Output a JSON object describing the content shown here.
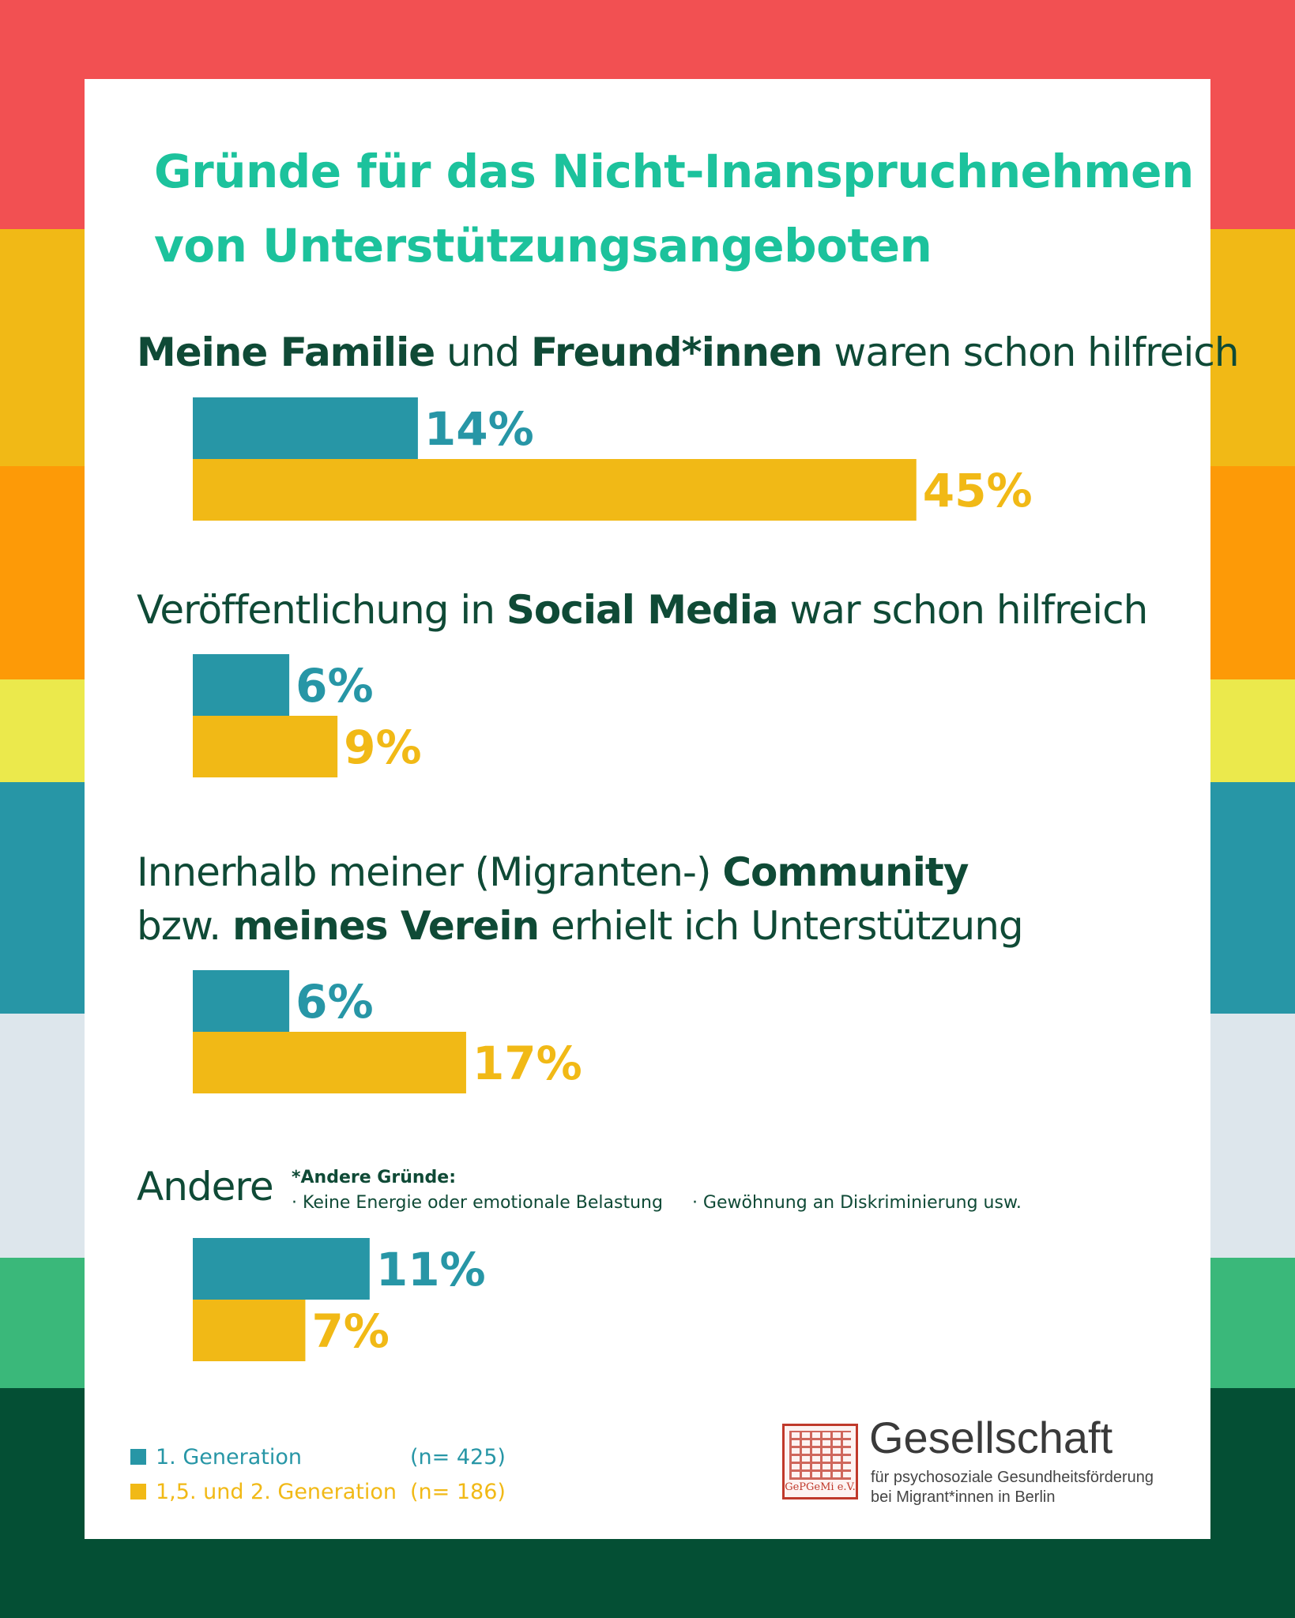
{
  "colors": {
    "stripes": [
      "#f25052",
      "#f1b916",
      "#fd9a07",
      "#ebe94c",
      "#2796a6",
      "#dde6ec",
      "#3ab87a",
      "#044f34"
    ],
    "title": "#1cc29c",
    "question": "#0f4a36",
    "gen1": "#2796a6",
    "gen2": "#f1b916"
  },
  "title": {
    "line1": "Gründe für das Nicht-Inanspruchnehmen",
    "line2": "von Unterstützungsangeboten"
  },
  "questions": [
    {
      "parts": [
        {
          "b": "Meine Familie"
        },
        {
          "t": " und "
        },
        {
          "b": "Freund*innen"
        },
        {
          "t": " waren schon hilfreich"
        }
      ]
    },
    {
      "parts": [
        {
          "t": "Veröffentlichung in "
        },
        {
          "b": "Social Media"
        },
        {
          "t": " war schon hilfreich"
        }
      ]
    },
    {
      "line1": [
        {
          "t": "Innerhalb meiner (Migranten-) "
        },
        {
          "b": "Community"
        }
      ],
      "line2": [
        {
          "t": "bzw. "
        },
        {
          "b": "meines Verein"
        },
        {
          "t": " erhielt ich Unterstützung"
        }
      ]
    },
    {
      "parts": [
        {
          "t": "Andere"
        }
      ]
    }
  ],
  "note": {
    "heading": "*Andere Gründe:",
    "items": [
      "· Keine Energie oder emotionale Belastung",
      "· Gewöhnung an Diskriminierung usw."
    ]
  },
  "chart_data": {
    "type": "bar",
    "orientation": "horizontal",
    "categories": [
      "Meine Familie und Freund*innen waren schon hilfreich",
      "Veröffentlichung in Social Media war schon hilfreich",
      "Innerhalb meiner (Migranten-) Community bzw. meines Verein erhielt ich Unterstützung",
      "Andere"
    ],
    "series": [
      {
        "name": "1. Generation",
        "values": [
          14,
          6,
          6,
          11
        ],
        "labels": [
          "14%",
          "6%",
          "6%",
          "11%"
        ]
      },
      {
        "name": "1,5. und 2. Generation",
        "values": [
          45,
          9,
          17,
          7
        ],
        "labels": [
          "45%",
          "9%",
          "17%",
          "7%"
        ]
      }
    ],
    "unit": "%",
    "title": "Gründe für das Nicht-Inanspruchnehmen von Unterstützungsangeboten"
  },
  "legend": [
    {
      "name": "1. Generation",
      "n": "(n= 425)"
    },
    {
      "name": "1,5. und 2. Generation",
      "n": "(n= 186)"
    }
  ],
  "logo": {
    "org": "Gesellschaft",
    "sub1": "für psychosoziale Gesundheitsförderung",
    "sub2": "bei Migrant*innen in Berlin",
    "seal_text": "GePGeMi e.V."
  }
}
